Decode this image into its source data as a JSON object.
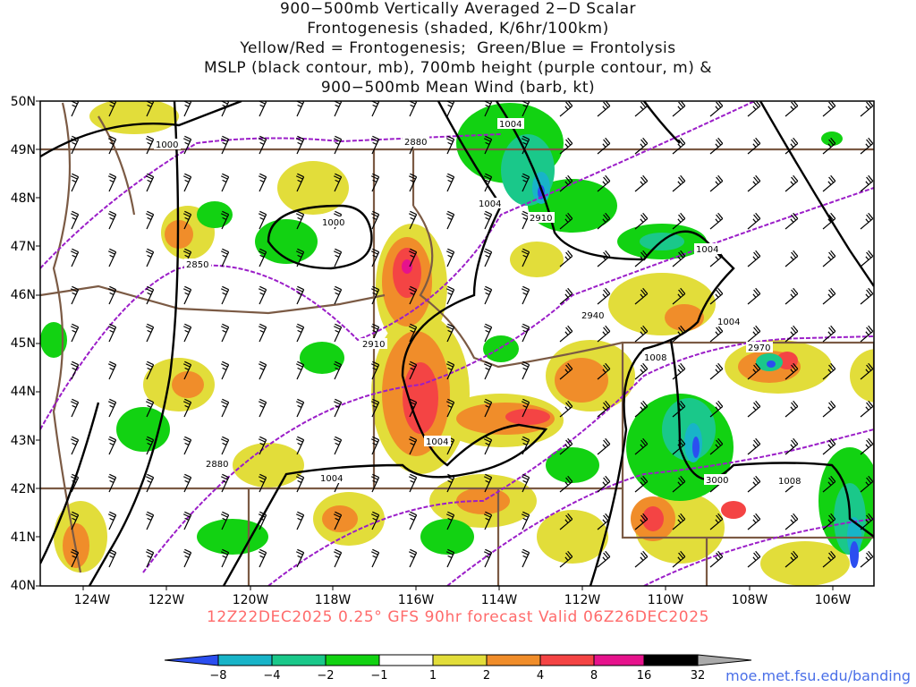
{
  "title": {
    "line1": "900−500mb Vertically Averaged 2−D Scalar",
    "line2": "Frontogenesis (shaded, K/6hr/100km)",
    "line3": "Yellow/Red = Frontogenesis;  Green/Blue = Frontolysis",
    "line4": "MSLP (black contour, mb), 700mb height (purple contour, m) &",
    "line5": "900−500mb Mean Wind (barb, kt)"
  },
  "map": {
    "lat_labels": [
      "50N",
      "49N",
      "48N",
      "47N",
      "46N",
      "45N",
      "44N",
      "43N",
      "42N",
      "41N",
      "40N"
    ],
    "lon_labels": [
      "124W",
      "122W",
      "120W",
      "118W",
      "116W",
      "114W",
      "112W",
      "110W",
      "108W",
      "106W"
    ],
    "extent": {
      "lon": [
        -125.1,
        -105.2
      ],
      "lat": [
        40,
        50
      ]
    },
    "mslp_labels": [
      "1000",
      "1000",
      "1004",
      "1004",
      "1004",
      "1004",
      "1004",
      "1004",
      "1008",
      "1008"
    ],
    "height_labels": [
      "2880",
      "2850",
      "2880",
      "2910",
      "2910",
      "2940",
      "2970",
      "3000"
    ]
  },
  "colorbar": {
    "ticks": [
      "−8",
      "−4",
      "−2",
      "−1",
      "1",
      "2",
      "4",
      "8",
      "16",
      "32"
    ],
    "colors": [
      "#2b4ef0",
      "#18b4c8",
      "#1ac88a",
      "#12d212",
      "#ffffff",
      "#e2dd3a",
      "#f08d2a",
      "#f44444",
      "#e6128c",
      "#000000",
      "#aaaaaa"
    ]
  },
  "footer": "12Z22DEC2025  0.25° GFS 90hr forecast Valid 06Z26DEC2025",
  "credit": "moe.met.fsu.edu/banding"
}
